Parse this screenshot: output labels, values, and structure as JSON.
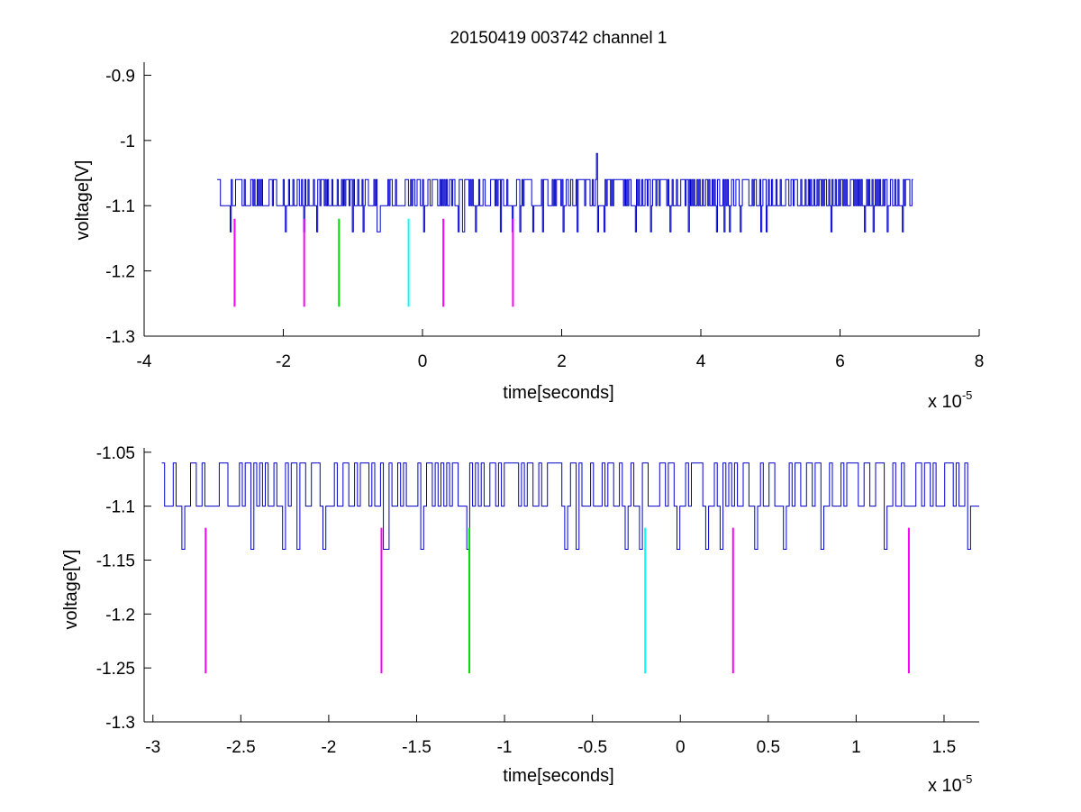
{
  "chart_data": [
    {
      "type": "line",
      "title": "20150419 003742 channel 1",
      "xlabel": "time[seconds]",
      "ylabel": "voltage[V]",
      "x_multiplier_base": "x 10",
      "x_multiplier_exp": "-5",
      "xlim": [
        -4,
        8
      ],
      "ylim": [
        -1.3,
        -0.88
      ],
      "xticks": [
        -4,
        -2,
        0,
        2,
        4,
        6,
        8
      ],
      "xtick_labels": [
        "-4",
        "-2",
        "0",
        "2",
        "4",
        "6",
        "8"
      ],
      "yticks": [
        -1.3,
        -1.2,
        -1.1,
        -1.0,
        -0.9
      ],
      "ytick_labels": [
        "-1.3",
        "-1.2",
        "-1.1",
        "-1",
        "-0.9"
      ],
      "grid": false,
      "series": [
        {
          "color": "#0000cc",
          "x_range": [
            -2.95,
            7.05
          ],
          "baseline": -1.1,
          "high": -1.06,
          "low": -1.14,
          "spike": {
            "x": 2.5,
            "y": -1.02
          }
        }
      ],
      "markers": [
        {
          "x": -2.7,
          "y_top": -1.12,
          "y_bottom": -1.255,
          "color": "#ff00ff"
        },
        {
          "x": -1.7,
          "y_top": -1.12,
          "y_bottom": -1.255,
          "color": "#ff00ff"
        },
        {
          "x": -1.2,
          "y_top": -1.12,
          "y_bottom": -1.255,
          "color": "#00dd00"
        },
        {
          "x": -0.2,
          "y_top": -1.12,
          "y_bottom": -1.255,
          "color": "#00ffff"
        },
        {
          "x": 0.3,
          "y_top": -1.12,
          "y_bottom": -1.255,
          "color": "#ff00ff"
        },
        {
          "x": 1.3,
          "y_top": -1.12,
          "y_bottom": -1.255,
          "color": "#ff00ff"
        }
      ]
    },
    {
      "type": "line",
      "title": "",
      "xlabel": "time[seconds]",
      "ylabel": "voltage[V]",
      "x_multiplier_base": "x 10",
      "x_multiplier_exp": "-5",
      "xlim": [
        -3.05,
        1.7
      ],
      "ylim": [
        -1.3,
        -1.046
      ],
      "xticks": [
        -3,
        -2.5,
        -2,
        -1.5,
        -1,
        -0.5,
        0,
        0.5,
        1,
        1.5
      ],
      "xtick_labels": [
        "-3",
        "-2.5",
        "-2",
        "-1.5",
        "-1",
        "-0.5",
        "0",
        "0.5",
        "1",
        "1.5"
      ],
      "yticks": [
        -1.3,
        -1.25,
        -1.2,
        -1.15,
        -1.1,
        -1.05
      ],
      "ytick_labels": [
        "-1.3",
        "-1.25",
        "-1.2",
        "-1.15",
        "-1.1",
        "-1.05"
      ],
      "grid": false,
      "series": [
        {
          "color": "#0000cc",
          "x_range": [
            -2.95,
            1.7
          ],
          "baseline": -1.1,
          "high": -1.06,
          "low": -1.14
        }
      ],
      "markers": [
        {
          "x": -2.7,
          "y_top": -1.12,
          "y_bottom": -1.255,
          "color": "#ff00ff"
        },
        {
          "x": -1.7,
          "y_top": -1.12,
          "y_bottom": -1.255,
          "color": "#ff00ff"
        },
        {
          "x": -1.2,
          "y_top": -1.12,
          "y_bottom": -1.255,
          "color": "#00dd00"
        },
        {
          "x": -0.2,
          "y_top": -1.12,
          "y_bottom": -1.255,
          "color": "#00ffff"
        },
        {
          "x": 0.3,
          "y_top": -1.12,
          "y_bottom": -1.255,
          "color": "#ff00ff"
        },
        {
          "x": 1.3,
          "y_top": -1.12,
          "y_bottom": -1.255,
          "color": "#ff00ff"
        }
      ]
    }
  ]
}
